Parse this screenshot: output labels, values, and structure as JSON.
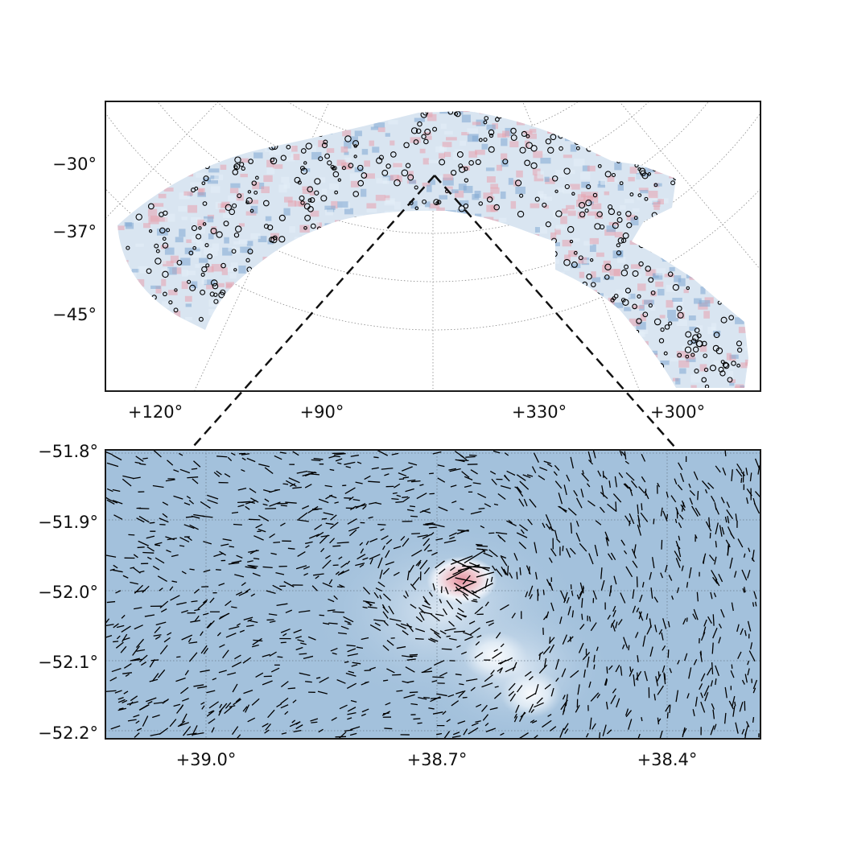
{
  "top_panel": {
    "lat_labels": [
      "−30°",
      "−37°",
      "−45°"
    ],
    "lon_labels": [
      "+120°",
      "+90°",
      "+330°",
      "+300°"
    ]
  },
  "bottom_panel": {
    "lat_labels": [
      "−51.8°",
      "−51.9°",
      "−52.0°",
      "−52.1°",
      "−52.2°"
    ],
    "lon_labels": [
      "+39.0°",
      "+38.7°",
      "+38.4°"
    ]
  },
  "colors": {
    "map_blue": "#a3c1dc",
    "map_pale": "#e4eef7",
    "map_red": "#e8a3ae",
    "source_ring": "#000000",
    "frame": "#1a1a1a",
    "grid": "#888888"
  }
}
